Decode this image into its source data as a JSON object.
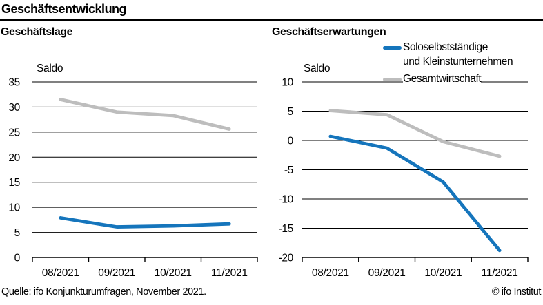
{
  "page": {
    "title": "Geschäftsentwicklung",
    "source": "Quelle: ifo Konjunkturumfragen, November 2021.",
    "copyright": "© ifo Institut"
  },
  "legend": {
    "position": "top-right",
    "series1_line1": "Soloselbstständige",
    "series1_line2": "und Kleinstunternehmen",
    "series2": "Gesamtwirtschaft"
  },
  "colors": {
    "series1": "#1575bc",
    "series2": "#bdbdbd",
    "axis": "#000000",
    "grid": "#000000"
  },
  "chart_data": [
    {
      "type": "line",
      "title": "Geschäftslage",
      "ylabel": "Saldo",
      "categories": [
        "08/2021",
        "09/2021",
        "10/2021",
        "11/2021"
      ],
      "series": [
        {
          "name": "Soloselbstständige und Kleinstunternehmen",
          "color": "#1575bc",
          "values": [
            7.9,
            6.1,
            6.3,
            6.7
          ]
        },
        {
          "name": "Gesamtwirtschaft",
          "color": "#bdbdbd",
          "values": [
            31.5,
            29.0,
            28.3,
            25.6
          ]
        }
      ],
      "ylim": [
        0,
        35
      ],
      "yticks": [
        0,
        5,
        10,
        15,
        20,
        25,
        30,
        35
      ],
      "grid": true,
      "legend_position": "none"
    },
    {
      "type": "line",
      "title": "Geschäftserwartungen",
      "ylabel": "Saldo",
      "categories": [
        "08/2021",
        "09/2021",
        "10/2021",
        "11/2021"
      ],
      "series": [
        {
          "name": "Soloselbstständige und Kleinstunternehmen",
          "color": "#1575bc",
          "values": [
            0.7,
            -1.3,
            -7.1,
            -18.8
          ]
        },
        {
          "name": "Gesamtwirtschaft",
          "color": "#bdbdbd",
          "values": [
            5.1,
            4.4,
            -0.2,
            -2.7
          ]
        }
      ],
      "ylim": [
        -20,
        10
      ],
      "yticks": [
        -20,
        -15,
        -10,
        -5,
        0,
        5,
        10
      ],
      "grid": true,
      "legend_position": "top-right"
    }
  ]
}
